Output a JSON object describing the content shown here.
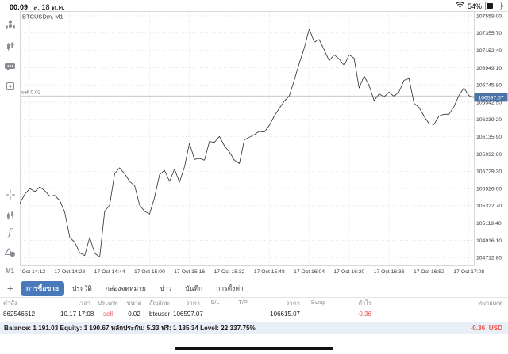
{
  "status_bar": {
    "time": "00:09",
    "date": "ส. 18 ต.ค.",
    "battery": "54%"
  },
  "sidebar": {
    "icons": [
      "quotes-icon",
      "trade-icon",
      "chat-icon",
      "new-order-icon",
      "crosshair-icon",
      "indicators-icon",
      "functions-icon",
      "objects-icon"
    ],
    "timeframe": "M1"
  },
  "chart": {
    "symbol_label": "BTCUSDm, M1",
    "sell_label": "sell 0.02",
    "price_tag": "106597.07"
  },
  "chart_data": {
    "type": "line",
    "title": "BTCUSDm, M1",
    "xlabel": "",
    "ylabel": "",
    "grid": true,
    "ylim": [
      104622,
      107615
    ],
    "t_max": 182,
    "step_min": 2,
    "y_ticks": [
      104712.8,
      104916.1,
      105119.4,
      105322.7,
      105526.0,
      105729.3,
      105932.6,
      106135.9,
      106339.2,
      106542.5,
      106745.8,
      106949.1,
      107152.4,
      107355.7,
      107559.0
    ],
    "x_labels": [
      "17 Oct 14:12",
      "17 Oct 14:28",
      "17 Oct 14:44",
      "17 Oct 15:00",
      "17 Oct 15:16",
      "17 Oct 15:32",
      "17 Oct 15:48",
      "17 Oct 16:04",
      "17 Oct 16:20",
      "17 Oct 16:36",
      "17 Oct 16:52",
      "17 Oct 17:08"
    ],
    "x_label_t": [
      4,
      20,
      36,
      52,
      68,
      84,
      100,
      116,
      132,
      148,
      164,
      180
    ],
    "sell_line": 106615.07,
    "price_line": 106597.07,
    "prices": [
      105350,
      105460,
      105525,
      105490,
      105545,
      105500,
      105435,
      105445,
      105385,
      105245,
      104950,
      104895,
      104770,
      104737,
      104950,
      104765,
      104718,
      105260,
      105330,
      105700,
      105770,
      105700,
      105610,
      105560,
      105330,
      105260,
      105225,
      105420,
      105690,
      105740,
      105610,
      105755,
      105600,
      105780,
      106060,
      105870,
      105880,
      105860,
      106080,
      106070,
      106140,
      106030,
      105955,
      105860,
      105820,
      106100,
      106130,
      106160,
      106200,
      106190,
      106270,
      106380,
      106470,
      106555,
      106615,
      106800,
      107000,
      107180,
      107405,
      107250,
      107280,
      107160,
      107030,
      107100,
      107050,
      106975,
      107100,
      107060,
      106710,
      106850,
      106740,
      106560,
      106640,
      106605,
      106660,
      106610,
      106665,
      106800,
      106820,
      106530,
      106480,
      106380,
      106290,
      106280,
      106380,
      106400,
      106400,
      106490,
      106620,
      106710,
      106620,
      106597
    ]
  },
  "tabs": {
    "add_label": "+",
    "items": [
      {
        "label": "การซื้อขาย",
        "active": true
      },
      {
        "label": "ประวัติ",
        "active": false
      },
      {
        "label": "กล่องจดหมาย",
        "active": false
      },
      {
        "label": "ข่าว",
        "active": false
      },
      {
        "label": "บันทึก",
        "active": false
      },
      {
        "label": "การตั้งค่า",
        "active": false
      }
    ]
  },
  "orders_table": {
    "columns": [
      "คำสั่ง",
      "เวลา",
      "ประเภท",
      "ขนาด",
      "สัญลักษณ์",
      "ราคา",
      "S/L",
      "T/P",
      "ราคา",
      "Swap",
      "กำไร",
      "หมายเหตุ"
    ],
    "rows": [
      [
        "862546612",
        "10.17 17:08",
        "sell",
        "0.02",
        "btcusdm",
        "106597.07",
        "",
        "",
        "106615.07",
        "",
        "-0.36",
        ""
      ]
    ]
  },
  "account": {
    "summary": "Balance: 1 191.03 Equity: 1 190.67 หลักประกัน: 5.33 ฟรี: 1 185.34 Level: 22 337.75%",
    "profit": "-0.36",
    "currency": "USD"
  },
  "colors": {
    "accent_blue": "#4a79ba",
    "price_tag_blue": "#4b73a8",
    "negative_red": "#e8514e",
    "chart_line": "#2e2e2e",
    "grid_grey": "#d5d5d5",
    "balance_bg": "#e9eff7"
  }
}
